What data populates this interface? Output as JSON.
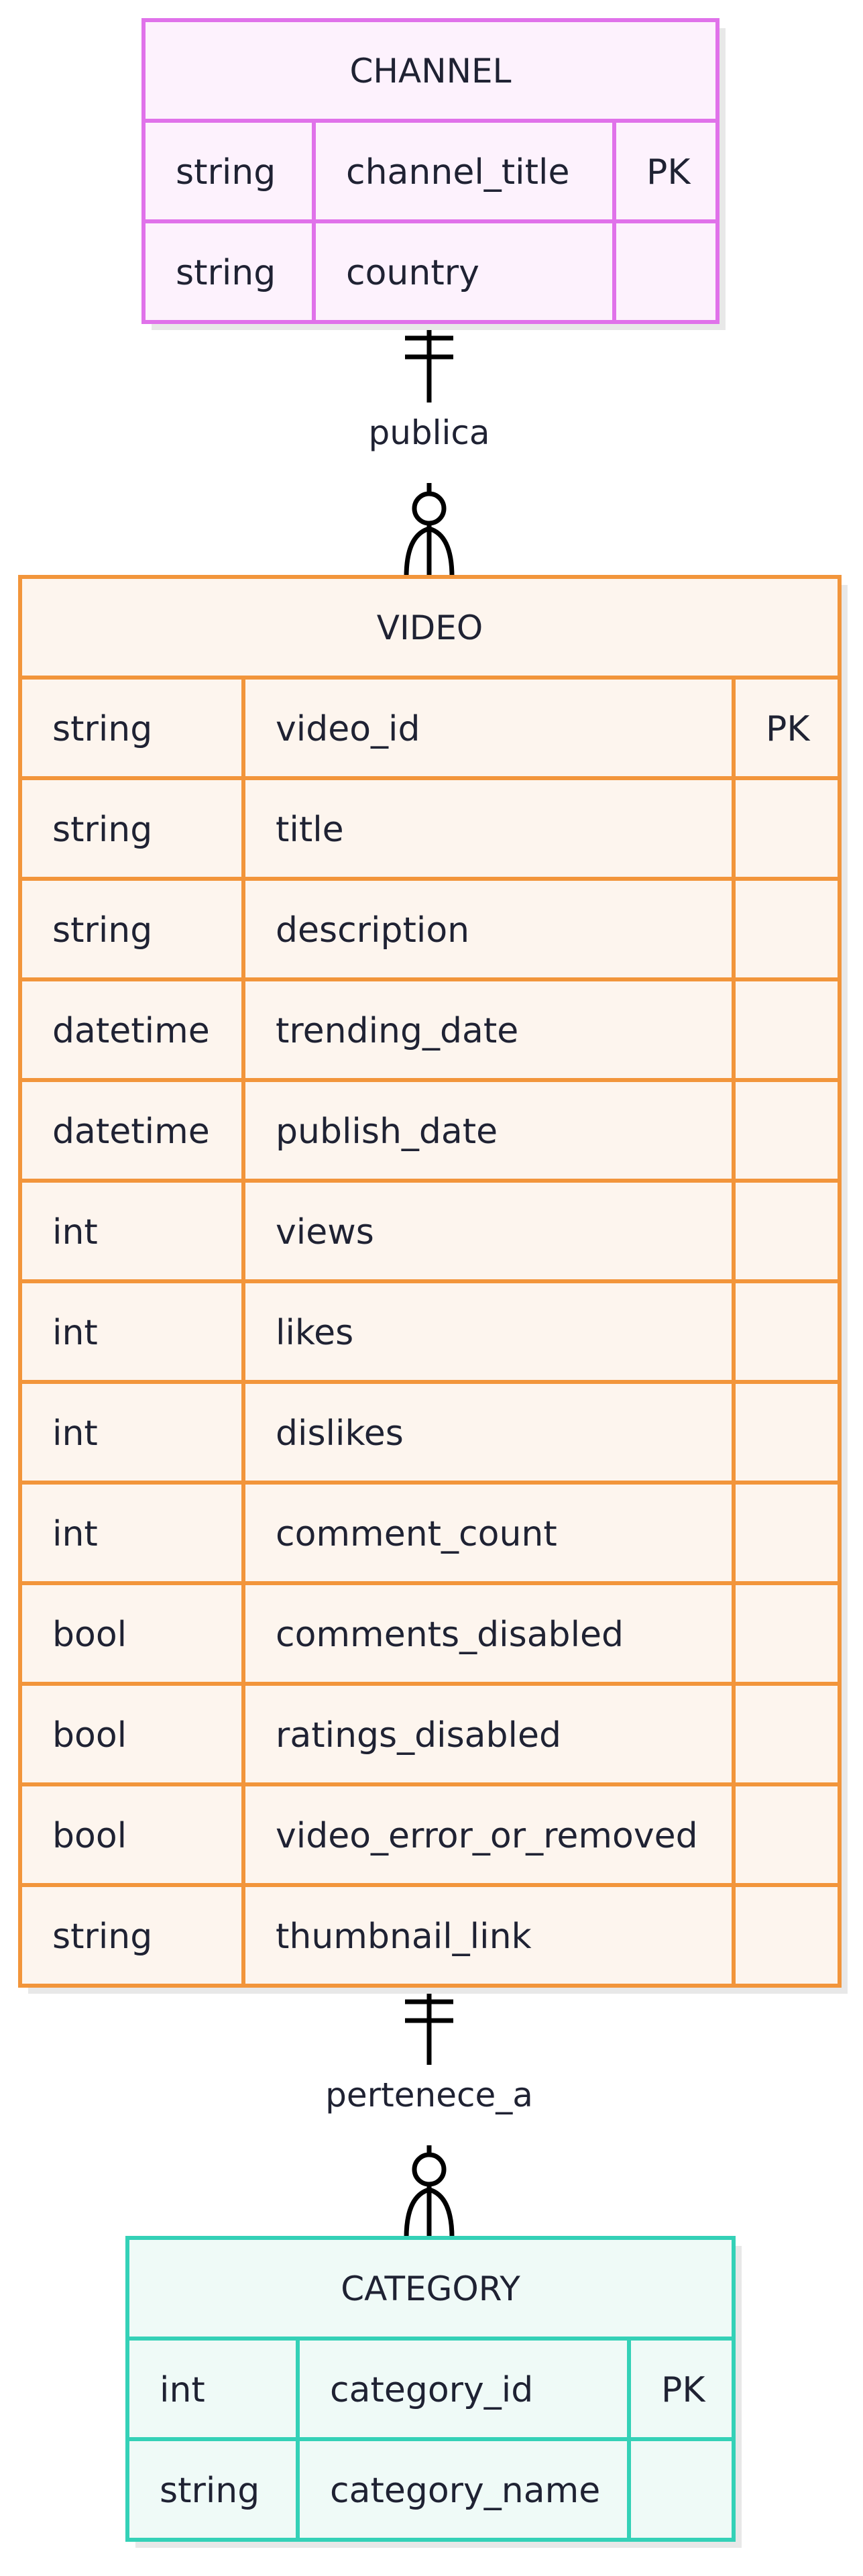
{
  "entities": [
    {
      "id": "channel",
      "name": "CHANNEL",
      "colors": {
        "fill": "#fdf2fd",
        "stroke": "#e072ea"
      },
      "rows": [
        {
          "type": "string",
          "field": "channel_title",
          "key": "PK"
        },
        {
          "type": "string",
          "field": "country",
          "key": ""
        }
      ]
    },
    {
      "id": "video",
      "name": "VIDEO",
      "colors": {
        "fill": "#fdf5ee",
        "stroke": "#f2953b"
      },
      "rows": [
        {
          "type": "string",
          "field": "video_id",
          "key": "PK"
        },
        {
          "type": "string",
          "field": "title",
          "key": ""
        },
        {
          "type": "string",
          "field": "description",
          "key": ""
        },
        {
          "type": "datetime",
          "field": "trending_date",
          "key": ""
        },
        {
          "type": "datetime",
          "field": "publish_date",
          "key": ""
        },
        {
          "type": "int",
          "field": "views",
          "key": ""
        },
        {
          "type": "int",
          "field": "likes",
          "key": ""
        },
        {
          "type": "int",
          "field": "dislikes",
          "key": ""
        },
        {
          "type": "int",
          "field": "comment_count",
          "key": ""
        },
        {
          "type": "bool",
          "field": "comments_disabled",
          "key": ""
        },
        {
          "type": "bool",
          "field": "ratings_disabled",
          "key": ""
        },
        {
          "type": "bool",
          "field": "video_error_or_removed",
          "key": ""
        },
        {
          "type": "string",
          "field": "thumbnail_link",
          "key": ""
        }
      ]
    },
    {
      "id": "category",
      "name": "CATEGORY",
      "colors": {
        "fill": "#effaf7",
        "stroke": "#34d1b7"
      },
      "rows": [
        {
          "type": "int",
          "field": "category_id",
          "key": "PK"
        },
        {
          "type": "string",
          "field": "category_name",
          "key": ""
        }
      ]
    }
  ],
  "relationships": [
    {
      "from": "channel",
      "to": "video",
      "label": "publica",
      "from_cardinality": "exactly-one",
      "to_cardinality": "zero-or-many"
    },
    {
      "from": "video",
      "to": "category",
      "label": "pertenece_a",
      "from_cardinality": "exactly-one",
      "to_cardinality": "zero-or-many"
    }
  ],
  "colors": {
    "text": "#1f2233",
    "line": "#000000",
    "shadow": "#e8e8e8"
  }
}
